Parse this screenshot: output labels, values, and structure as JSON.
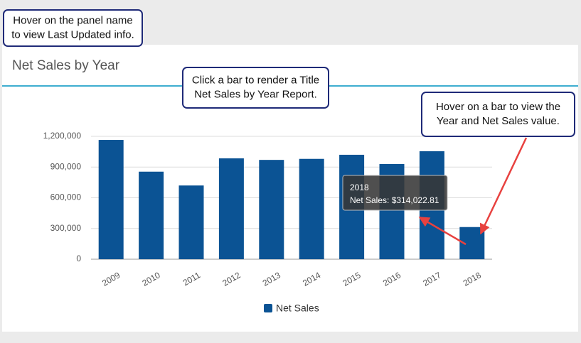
{
  "chart_data": {
    "type": "bar",
    "title": "Net Sales by Year",
    "categories": [
      "2009",
      "2010",
      "2011",
      "2012",
      "2013",
      "2014",
      "2015",
      "2016",
      "2017",
      "2018"
    ],
    "series": [
      {
        "name": "Net Sales",
        "color": "#0b5394",
        "values": [
          1165000,
          855000,
          720000,
          985000,
          970000,
          980000,
          1020000,
          930000,
          1055000,
          314022.81
        ]
      }
    ],
    "ylim": [
      0,
      1200000
    ],
    "yticks": [
      0,
      {
        "value": 300000,
        "label": "300,000"
      },
      {
        "value": 600000,
        "label": "600,000"
      },
      {
        "value": 900000,
        "label": "900,000"
      },
      {
        "value": 1200000,
        "label": "1,200,000"
      }
    ],
    "grid": true,
    "legend": "bottom",
    "tooltip": {
      "index": 9,
      "label": "Net Sales: $314,022.81"
    }
  },
  "callouts": [
    {
      "lines": [
        "Hover on the panel name",
        "to view Last Updated info."
      ]
    },
    {
      "lines": [
        "Click a bar to render a Title",
        "Net Sales by Year Report."
      ]
    },
    {
      "lines": [
        "Hover on a bar to view the",
        "Year and Net Sales value."
      ]
    }
  ]
}
